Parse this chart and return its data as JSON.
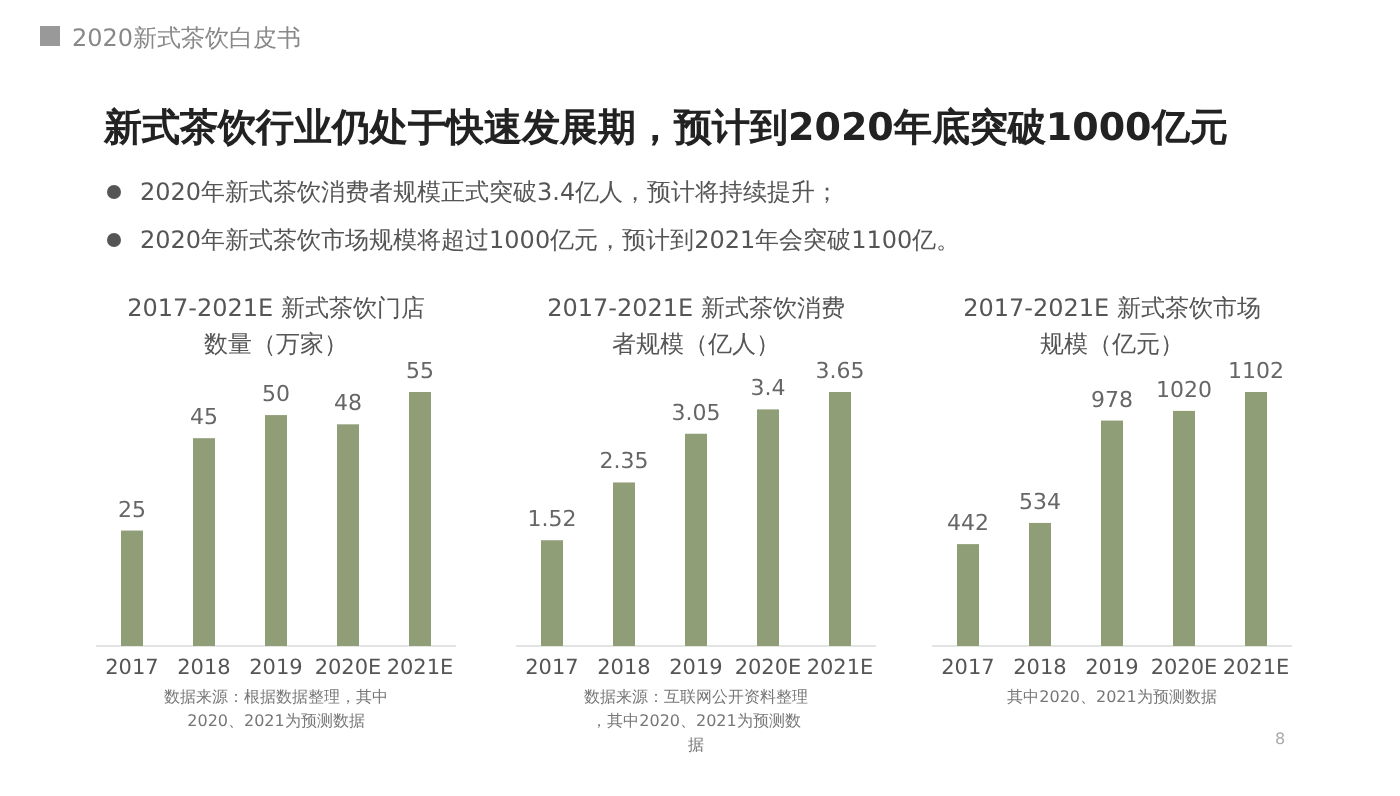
{
  "chart_data": [
    {
      "type": "other",
      "title": "新式茶饮行业仍处于快速发展期，预计到2020年底突破1000亿元",
      "annotations": [
        "2020新式茶饮白皮书",
        "2020年新式茶饮消费者规模正式突破3.4亿人，预计将持续提升；",
        "2020年新式茶饮市场规模将超过1000亿元，预计到2021年会突破1100亿。",
        "8"
      ]
    },
    {
      "type": "bar",
      "title": "2017-2021E 新式茶饮门店数量（万家）",
      "categories": [
        "2017",
        "2018",
        "2019",
        "2020E",
        "2021E"
      ],
      "values": [
        25,
        45,
        50,
        48,
        55
      ],
      "color": "#8f9e77",
      "data_labels": true,
      "annotations": [
        "数据来源：根据数据整理，其中2020、2021为预测数据"
      ]
    },
    {
      "type": "bar",
      "title": "2017-2021E 新式茶饮消费者规模（亿人）",
      "categories": [
        "2017",
        "2018",
        "2019",
        "2020E",
        "2021E"
      ],
      "values": [
        1.52,
        2.35,
        3.05,
        3.4,
        3.65
      ],
      "color": "#8f9e77",
      "data_labels": true,
      "annotations": [
        "数据来源：互联网公开资料整理，其中2020、2021为预测数据"
      ]
    },
    {
      "type": "bar",
      "title": "2017-2021E 新式茶饮市场规模（亿元）",
      "categories": [
        "2017",
        "2018",
        "2019",
        "2020E",
        "2021E"
      ],
      "values": [
        442,
        534,
        978,
        1020,
        1102
      ],
      "color": "#8f9e77",
      "data_labels": true,
      "annotations": [
        "其中2020、2021为预测数据"
      ]
    }
  ]
}
